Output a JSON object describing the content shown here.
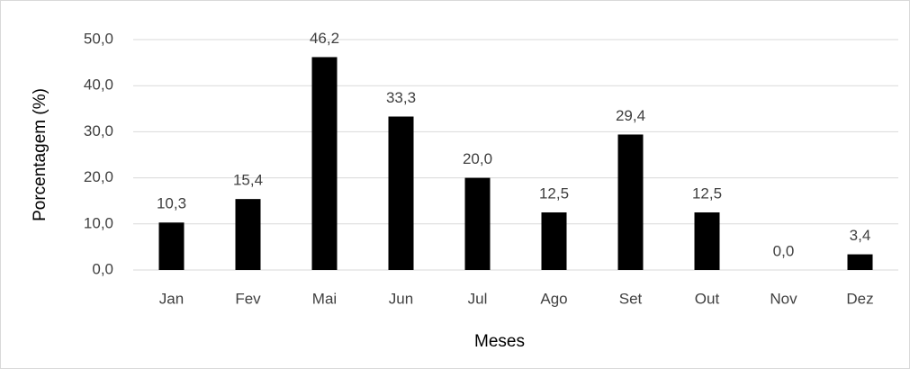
{
  "chart_data": {
    "type": "bar",
    "categories": [
      "Jan",
      "Fev",
      "Mai",
      "Jun",
      "Jul",
      "Ago",
      "Set",
      "Out",
      "Nov",
      "Dez"
    ],
    "values": [
      10.3,
      15.4,
      46.2,
      33.3,
      20.0,
      12.5,
      29.4,
      12.5,
      0.0,
      3.4
    ],
    "value_labels": [
      "10,3",
      "15,4",
      "46,2",
      "33,3",
      "20,0",
      "12,5",
      "29,4",
      "12,5",
      "0,0",
      "3,4"
    ],
    "color": "#000000",
    "x_label": "Meses",
    "y_label": "Porcentagem (%)",
    "ylim": [
      0,
      50
    ],
    "yticks": [
      {
        "value": 0,
        "label": "0,0"
      },
      {
        "value": 10,
        "label": "10,0"
      },
      {
        "value": 20,
        "label": "20,0"
      },
      {
        "value": 30,
        "label": "30,0"
      },
      {
        "value": 40,
        "label": "40,0"
      },
      {
        "value": 50,
        "label": "50,0"
      }
    ],
    "grid": true
  }
}
